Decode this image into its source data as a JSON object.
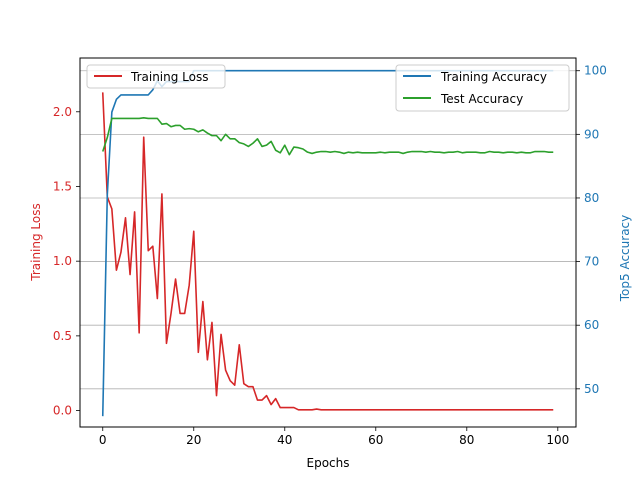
{
  "chart_data": {
    "type": "line",
    "title": "",
    "xlabel": "Epochs",
    "ylabel_left": "Training Loss",
    "ylabel_right": "Top5 Accuracy",
    "xlim": [
      -5,
      104
    ],
    "ylim_left": [
      -0.11,
      2.36
    ],
    "ylim_right": [
      44,
      102
    ],
    "x_ticks": [
      0,
      20,
      40,
      60,
      80,
      100
    ],
    "y_left_ticks": [
      "0.0",
      "0.5",
      "1.0",
      "1.5",
      "2.0"
    ],
    "y_right_ticks": [
      "50",
      "60",
      "70",
      "80",
      "90",
      "100"
    ],
    "grid": "horizontal lines at right-axis ticks",
    "colors": {
      "training_loss": "#d62728",
      "training_accuracy": "#1f77b4",
      "test_accuracy": "#2ca02c",
      "left_axis_text": "#d62728",
      "right_axis_text": "#1f77b4"
    },
    "legend_left": {
      "placement": "upper-left",
      "entries": [
        {
          "label": "Training Loss",
          "color": "#d62728"
        }
      ]
    },
    "legend_right": {
      "placement": "upper-right",
      "entries": [
        {
          "label": "Training Accuracy",
          "color": "#1f77b4"
        },
        {
          "label": "Test Accuracy",
          "color": "#2ca02c"
        }
      ]
    },
    "series": [
      {
        "name": "Training Loss",
        "axis": "left",
        "color": "#d62728",
        "x": [
          0,
          1,
          2,
          3,
          4,
          5,
          6,
          7,
          8,
          9,
          10,
          11,
          12,
          13,
          14,
          15,
          16,
          17,
          18,
          19,
          20,
          21,
          22,
          23,
          24,
          25,
          26,
          27,
          28,
          29,
          30,
          31,
          32,
          33,
          34,
          35,
          36,
          37,
          38,
          39,
          40,
          41,
          42,
          43,
          44,
          45,
          46,
          47,
          48,
          49,
          50,
          51,
          52,
          53,
          54,
          55,
          56,
          57,
          58,
          59,
          60,
          61,
          62,
          63,
          64,
          65,
          66,
          67,
          68,
          69,
          70,
          71,
          72,
          73,
          74,
          75,
          76,
          77,
          78,
          79,
          80,
          81,
          82,
          83,
          84,
          85,
          86,
          87,
          88,
          89,
          90,
          91,
          92,
          93,
          94,
          95,
          96,
          97,
          98,
          99
        ],
        "values": [
          2.13,
          1.43,
          1.35,
          0.94,
          1.06,
          1.29,
          0.91,
          1.33,
          0.52,
          1.83,
          1.07,
          1.1,
          0.75,
          1.45,
          0.45,
          0.65,
          0.88,
          0.65,
          0.65,
          0.84,
          1.2,
          0.39,
          0.73,
          0.34,
          0.59,
          0.1,
          0.51,
          0.27,
          0.2,
          0.17,
          0.44,
          0.18,
          0.16,
          0.16,
          0.07,
          0.07,
          0.1,
          0.04,
          0.08,
          0.02,
          0.02,
          0.02,
          0.02,
          0.005,
          0.005,
          0.005,
          0.005,
          0.01,
          0.005,
          0.005,
          0.005,
          0.005,
          0.005,
          0.005,
          0.005,
          0.005,
          0.005,
          0.005,
          0.005,
          0.005,
          0.005,
          0.005,
          0.005,
          0.005,
          0.005,
          0.005,
          0.005,
          0.005,
          0.005,
          0.005,
          0.005,
          0.005,
          0.005,
          0.005,
          0.005,
          0.005,
          0.005,
          0.005,
          0.005,
          0.005,
          0.005,
          0.005,
          0.005,
          0.005,
          0.005,
          0.005,
          0.005,
          0.005,
          0.005,
          0.005,
          0.005,
          0.005,
          0.005,
          0.005,
          0.005,
          0.005,
          0.005,
          0.005,
          0.005,
          0.005
        ]
      },
      {
        "name": "Training Accuracy",
        "axis": "right",
        "color": "#1f77b4",
        "x": [
          0,
          1,
          2,
          3,
          4,
          5,
          6,
          7,
          8,
          9,
          10,
          11,
          12,
          13,
          14,
          15,
          16,
          17,
          18,
          19,
          20,
          21,
          22,
          23,
          24,
          25,
          26,
          27,
          28,
          29,
          30,
          31,
          32,
          33,
          34,
          35,
          36,
          37,
          38,
          39,
          40,
          41,
          42,
          43,
          44,
          45,
          46,
          47,
          48,
          49,
          50,
          51,
          52,
          53,
          54,
          55,
          56,
          57,
          58,
          59,
          60,
          61,
          62,
          63,
          64,
          65,
          66,
          67,
          68,
          69,
          70,
          71,
          72,
          73,
          74,
          75,
          76,
          77,
          78,
          79,
          80,
          81,
          82,
          83,
          84,
          85,
          86,
          87,
          88,
          89,
          90,
          91,
          92,
          93,
          94,
          95,
          96,
          97,
          98,
          99
        ],
        "values": [
          45.7,
          80.5,
          93.5,
          95.5,
          96.2,
          96.2,
          96.2,
          96.2,
          96.2,
          96.2,
          96.2,
          97.0,
          98.4,
          97.5,
          98.3,
          98.3,
          98.3,
          98.3,
          98.3,
          98.3,
          100,
          100,
          100,
          100,
          100,
          100,
          100,
          100,
          100,
          100,
          100,
          100,
          100,
          100,
          100,
          100,
          100,
          100,
          100,
          100,
          100,
          100,
          100,
          100,
          100,
          100,
          100,
          100,
          100,
          100,
          100,
          100,
          100,
          100,
          100,
          100,
          100,
          100,
          100,
          100,
          100,
          100,
          100,
          100,
          100,
          100,
          100,
          100,
          100,
          100,
          100,
          100,
          100,
          100,
          100,
          100,
          100,
          100,
          100,
          100,
          100,
          100,
          100,
          100,
          100,
          100,
          100,
          100,
          100,
          100,
          100,
          100,
          100,
          100,
          100,
          100,
          100,
          100,
          100,
          100
        ]
      },
      {
        "name": "Test Accuracy",
        "axis": "right",
        "color": "#2ca02c",
        "x": [
          0,
          1,
          2,
          3,
          4,
          5,
          6,
          7,
          8,
          9,
          10,
          11,
          12,
          13,
          14,
          15,
          16,
          17,
          18,
          19,
          20,
          21,
          22,
          23,
          24,
          25,
          26,
          27,
          28,
          29,
          30,
          31,
          32,
          33,
          34,
          35,
          36,
          37,
          38,
          39,
          40,
          41,
          42,
          43,
          44,
          45,
          46,
          47,
          48,
          49,
          50,
          51,
          52,
          53,
          54,
          55,
          56,
          57,
          58,
          59,
          60,
          61,
          62,
          63,
          64,
          65,
          66,
          67,
          68,
          69,
          70,
          71,
          72,
          73,
          74,
          75,
          76,
          77,
          78,
          79,
          80,
          81,
          82,
          83,
          84,
          85,
          86,
          87,
          88,
          89,
          90,
          91,
          92,
          93,
          94,
          95,
          96,
          97,
          98,
          99
        ],
        "values": [
          87.3,
          89.5,
          92.5,
          92.5,
          92.5,
          92.5,
          92.5,
          92.5,
          92.5,
          92.6,
          92.5,
          92.5,
          92.5,
          91.6,
          91.7,
          91.2,
          91.4,
          91.4,
          90.8,
          90.9,
          90.8,
          90.4,
          90.7,
          90.2,
          89.8,
          89.8,
          89.0,
          90.0,
          89.3,
          89.3,
          88.7,
          88.5,
          88.1,
          88.6,
          89.3,
          88.1,
          88.3,
          88.9,
          87.5,
          87.1,
          88.3,
          86.8,
          88.0,
          87.9,
          87.7,
          87.2,
          87.0,
          87.2,
          87.3,
          87.3,
          87.2,
          87.3,
          87.2,
          87.0,
          87.2,
          87.1,
          87.2,
          87.1,
          87.1,
          87.1,
          87.1,
          87.2,
          87.1,
          87.2,
          87.2,
          87.2,
          87.0,
          87.2,
          87.3,
          87.3,
          87.3,
          87.2,
          87.3,
          87.2,
          87.2,
          87.1,
          87.2,
          87.2,
          87.3,
          87.1,
          87.2,
          87.2,
          87.2,
          87.1,
          87.1,
          87.3,
          87.2,
          87.2,
          87.1,
          87.2,
          87.2,
          87.1,
          87.2,
          87.1,
          87.1,
          87.3,
          87.3,
          87.3,
          87.2,
          87.2
        ]
      }
    ]
  }
}
